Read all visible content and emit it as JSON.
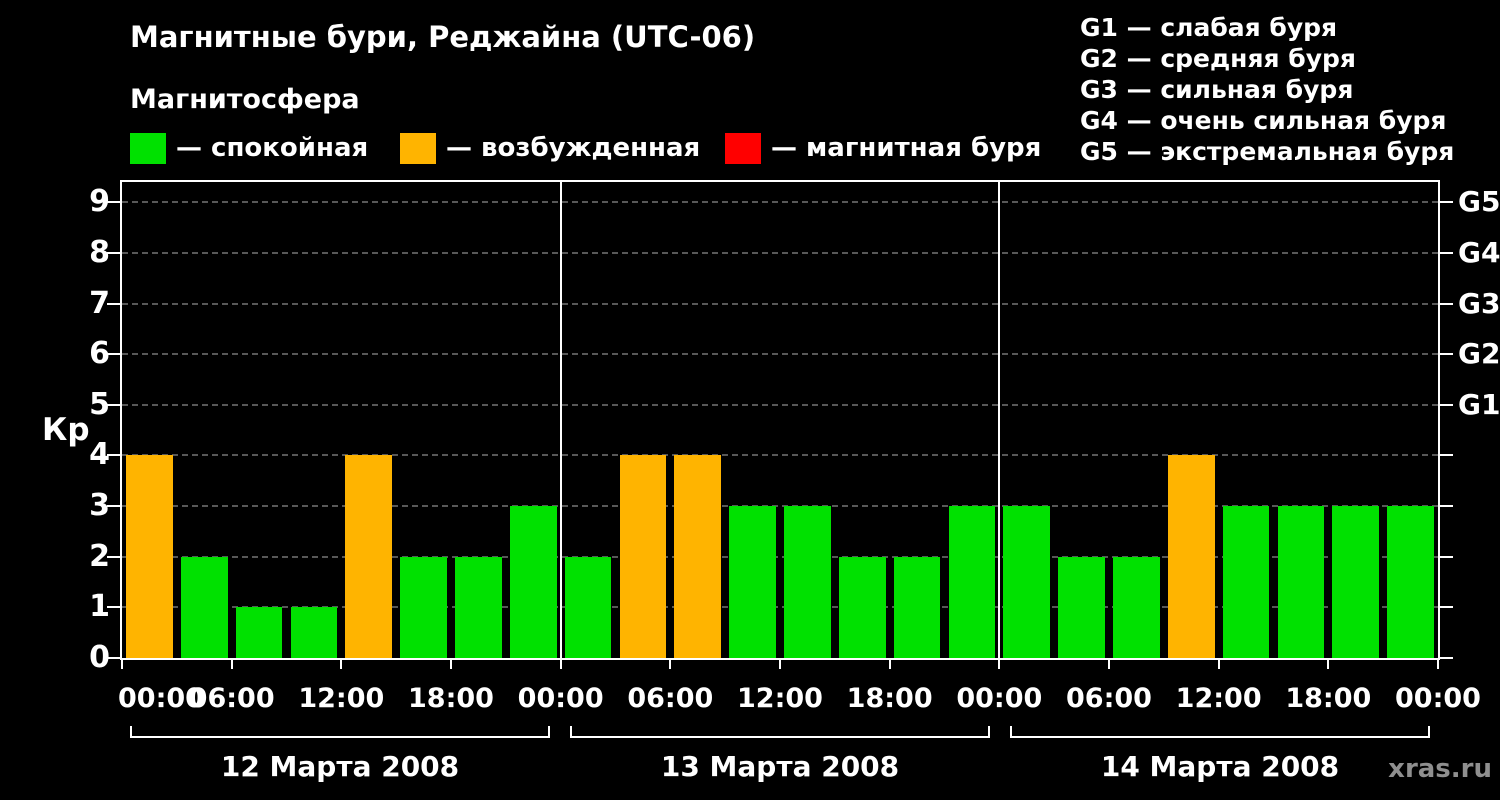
{
  "title": "Магнитные бури, Реджайна (UTC-06)",
  "legend": {
    "title": "Магнитосфера",
    "items": [
      {
        "label": "— спокойная",
        "color": "#00e100"
      },
      {
        "label": "— возбужденная",
        "color": "#ffb400"
      },
      {
        "label": "— магнитная буря",
        "color": "#ff0000"
      }
    ]
  },
  "g_scale": {
    "items": [
      {
        "label": "G1 — слабая буря"
      },
      {
        "label": "G2 — средняя буря"
      },
      {
        "label": "G3 — сильная буря"
      },
      {
        "label": "G4 — очень сильная буря"
      },
      {
        "label": "G5 — экстремальная буря"
      }
    ]
  },
  "watermark": "xras.ru",
  "chart_data": {
    "type": "bar",
    "title": "Магнитные бури, Реджайна (UTC-06)",
    "ylabel": "Кр",
    "ylim": [
      0,
      9.4
    ],
    "yticks": [
      0,
      1,
      2,
      3,
      4,
      5,
      6,
      7,
      8,
      9
    ],
    "right_axis_labels": [
      {
        "label": "G1",
        "value": 5
      },
      {
        "label": "G2",
        "value": 6
      },
      {
        "label": "G3",
        "value": 7
      },
      {
        "label": "G4",
        "value": 8
      },
      {
        "label": "G5",
        "value": 9
      }
    ],
    "x_tick_labels": [
      "00:00",
      "06:00",
      "12:00",
      "18:00",
      "00:00",
      "06:00",
      "12:00",
      "18:00",
      "00:00",
      "06:00",
      "12:00",
      "18:00",
      "00:00"
    ],
    "bar_interval_hours": 3,
    "days": [
      {
        "date": "12 Марта 2008",
        "values": [
          4,
          2,
          1,
          1,
          4,
          2,
          2,
          3
        ]
      },
      {
        "date": "13 Марта 2008",
        "values": [
          2,
          4,
          4,
          3,
          3,
          2,
          2,
          3
        ]
      },
      {
        "date": "14 Марта 2008",
        "values": [
          3,
          2,
          2,
          4,
          3,
          3,
          3,
          3
        ]
      }
    ],
    "color_thresholds": {
      "quiet_max": 3,
      "excited_max": 4
    },
    "colors": {
      "quiet": "#00e100",
      "excited": "#ffb400",
      "storm": "#ff0000"
    },
    "grid": "horizontal dashed",
    "legend_position": "top"
  }
}
